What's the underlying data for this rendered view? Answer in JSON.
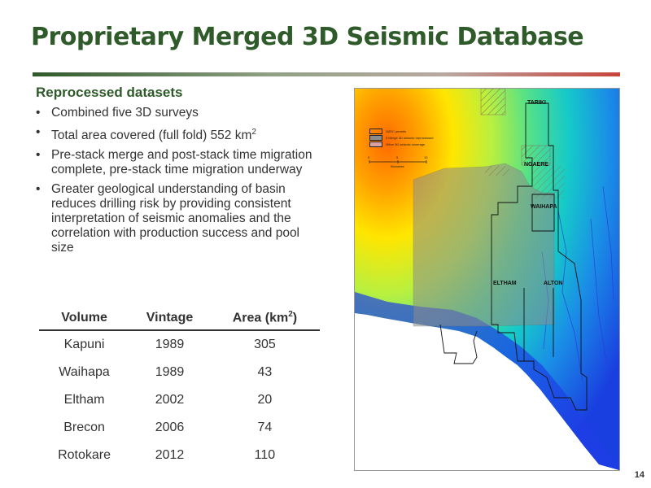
{
  "header": {
    "title": "Proprietary Merged 3D Seismic Database"
  },
  "section": {
    "subtitle": "Reprocessed datasets",
    "bullets": [
      {
        "text": "Combined five 3D surveys"
      },
      {
        "text": "Total area covered (full fold) 552 km",
        "sup": "2"
      },
      {
        "text": "Pre-stack merge and post-stack time migration complete, pre-stack time migration underway"
      },
      {
        "text": "Greater geological understanding of basin reduces drilling risk by providing consistent interpretation of seismic anomalies and the correlation with production success and pool size"
      }
    ]
  },
  "table": {
    "headers": {
      "volume": "Volume",
      "vintage": "Vintage",
      "area": "Area (km",
      "area_sup": "2",
      "area_close": ")"
    },
    "rows": [
      {
        "volume": "Kapuni",
        "vintage": "1989",
        "area": "305"
      },
      {
        "volume": "Waihapa",
        "vintage": "1989",
        "area": "43"
      },
      {
        "volume": "Eltham",
        "vintage": "2002",
        "area": "20"
      },
      {
        "volume": "Brecon",
        "vintage": "2006",
        "area": "74"
      },
      {
        "volume": "Rotokare",
        "vintage": "2012",
        "area": "110"
      }
    ]
  },
  "map": {
    "legend": {
      "items": [
        {
          "label": "NZEC permits"
        },
        {
          "label": "5 Merge 3D seismic reprocessed"
        },
        {
          "label": "Other 3D seismic coverage"
        }
      ],
      "scale_ticks": [
        "0",
        "5",
        "10"
      ],
      "scale_unit": "Kilometres"
    },
    "labels": {
      "tariki": "TARIKI",
      "ngaere": "NGAERE",
      "waihapa": "WAIHAPA",
      "eltham": "ELTHAM",
      "alton": "ALTON"
    }
  },
  "footer": {
    "page_number": "14"
  },
  "colors": {
    "title_green": "#2f5a2a",
    "accent_red": "#c8443c"
  }
}
